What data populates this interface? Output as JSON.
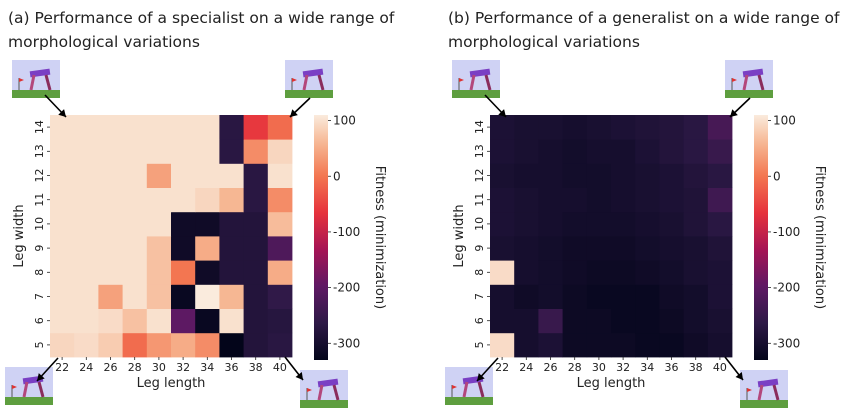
{
  "chart_data": [
    {
      "type": "heatmap",
      "title": "(a) Performance of a specialist on a wide range of morphological variations",
      "xlabel": "Leg length",
      "ylabel": "Leg width",
      "colorbar_label": "Fitness (minimization)",
      "colorbar_ticks": [
        "100",
        "0",
        "-100",
        "-200",
        "-300"
      ],
      "vmin": -330,
      "vmax": 110,
      "x": [
        "22",
        "24",
        "26",
        "28",
        "30",
        "32",
        "34",
        "36",
        "38",
        "40"
      ],
      "y": [
        "5",
        "6",
        "7",
        "8",
        "9",
        "10",
        "11",
        "12",
        "13",
        "14"
      ],
      "values": [
        [
          90,
          95,
          80,
          -10,
          30,
          50,
          20,
          -330,
          -280,
          -270
        ],
        [
          100,
          100,
          95,
          70,
          100,
          -200,
          -320,
          100,
          -280,
          -275
        ],
        [
          100,
          100,
          40,
          100,
          70,
          -320,
          110,
          60,
          -280,
          -260
        ],
        [
          100,
          100,
          100,
          100,
          70,
          0,
          -310,
          -280,
          -280,
          50
        ],
        [
          100,
          100,
          100,
          100,
          70,
          -310,
          50,
          -280,
          -280,
          -220
        ],
        [
          100,
          100,
          100,
          100,
          100,
          -310,
          -310,
          -280,
          -280,
          65
        ],
        [
          100,
          100,
          100,
          100,
          100,
          100,
          90,
          60,
          -270,
          20
        ],
        [
          100,
          100,
          100,
          100,
          40,
          100,
          100,
          100,
          -270,
          100
        ],
        [
          100,
          100,
          100,
          100,
          100,
          100,
          100,
          -270,
          20,
          90
        ],
        [
          100,
          100,
          100,
          100,
          100,
          100,
          100,
          -270,
          -60,
          -10
        ]
      ]
    },
    {
      "type": "heatmap",
      "title": "(b) Performance of a generalist on a wide range of morphological variations",
      "xlabel": "Leg length",
      "ylabel": "Leg width",
      "colorbar_label": "Fitness (minimization)",
      "colorbar_ticks": [
        "100",
        "0",
        "-100",
        "-200",
        "-300"
      ],
      "vmin": -330,
      "vmax": 110,
      "x": [
        "22",
        "24",
        "26",
        "28",
        "30",
        "32",
        "34",
        "36",
        "38",
        "40"
      ],
      "y": [
        "5",
        "6",
        "7",
        "8",
        "9",
        "10",
        "11",
        "12",
        "13",
        "14"
      ],
      "values": [
        [
          95,
          -300,
          -290,
          -315,
          -315,
          -315,
          -320,
          -320,
          -310,
          -300
        ],
        [
          -300,
          -300,
          -250,
          -315,
          -315,
          -320,
          -320,
          -315,
          -305,
          -295
        ],
        [
          -300,
          -310,
          -305,
          -315,
          -320,
          -320,
          -320,
          -310,
          -305,
          -290
        ],
        [
          95,
          -300,
          -305,
          -310,
          -315,
          -315,
          -310,
          -305,
          -295,
          -290
        ],
        [
          -295,
          -300,
          -305,
          -310,
          -310,
          -310,
          -305,
          -300,
          -295,
          -285
        ],
        [
          -290,
          -295,
          -300,
          -305,
          -305,
          -305,
          -300,
          -295,
          -285,
          -270
        ],
        [
          -290,
          -295,
          -300,
          -300,
          -305,
          -300,
          -295,
          -290,
          -285,
          -240
        ],
        [
          -295,
          -300,
          -300,
          -305,
          -305,
          -300,
          -295,
          -290,
          -280,
          -270
        ],
        [
          -290,
          -295,
          -300,
          -305,
          -300,
          -300,
          -290,
          -280,
          -270,
          -250
        ],
        [
          -290,
          -295,
          -295,
          -300,
          -295,
          -290,
          -285,
          -280,
          -270,
          -230
        ]
      ]
    }
  ]
}
